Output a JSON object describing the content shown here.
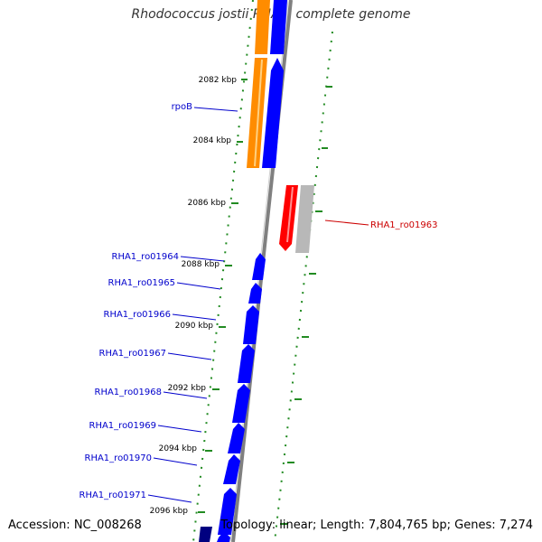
{
  "title": "Rhodococcus jostii RHA1, complete genome",
  "accession": "Accession: NC_008268",
  "topology": "Topology: linear; Length: 7,804,765 bp; Genes: 7,274",
  "colors": {
    "forward_gene": "#0000ff",
    "forward_dark": "#000080",
    "rrna": "#ff8c00",
    "reverse_gene": "#ff0000",
    "pseudo_gray": "#b8b8b8",
    "backbone": "#808080",
    "tick": "#228b22",
    "label_blue": "#0000cc",
    "label_red": "#cc0000"
  },
  "ticks": [
    "2082 kbp",
    "2084 kbp",
    "2086 kbp",
    "2088 kbp",
    "2090 kbp",
    "2092 kbp",
    "2094 kbp",
    "2096 kbp"
  ],
  "gene_labels_left": [
    "rpoB",
    "RHA1_ro01964",
    "RHA1_ro01965",
    "RHA1_ro01966",
    "RHA1_ro01967",
    "RHA1_ro01968",
    "RHA1_ro01969",
    "RHA1_ro01970",
    "RHA1_ro01971"
  ],
  "gene_labels_right": [
    "RHA1_ro01963"
  ]
}
